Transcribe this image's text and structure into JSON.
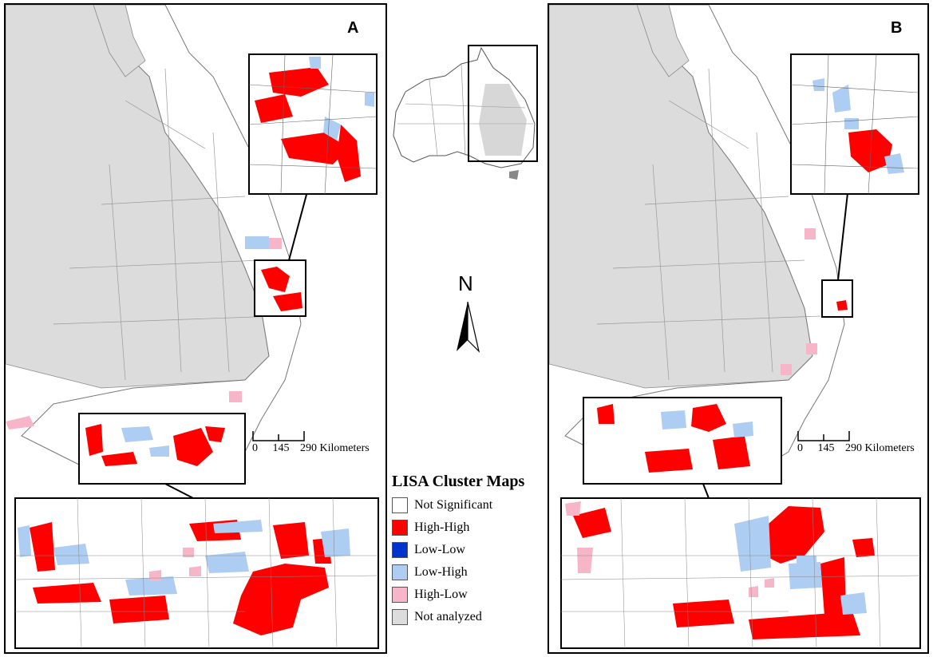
{
  "panels": {
    "a": {
      "letter": "A"
    },
    "b": {
      "letter": "B"
    }
  },
  "north_arrow": {
    "letter": "N"
  },
  "scale": {
    "ticks": [
      "0",
      "145",
      "290"
    ],
    "unit": "Kilometers"
  },
  "legend": {
    "title": "LISA Cluster Maps",
    "items": [
      {
        "label": "Not Significant",
        "color": "#ffffff"
      },
      {
        "label": "High-High",
        "color": "#ff0000"
      },
      {
        "label": "Low-Low",
        "color": "#0033cc"
      },
      {
        "label": "Low-High",
        "color": "#aecdf2"
      },
      {
        "label": "High-Low",
        "color": "#f7b6c8"
      },
      {
        "label": "Not analyzed",
        "color": "#dcdcdc"
      }
    ]
  },
  "colors": {
    "not_analyzed": "#dcdcdc",
    "not_significant": "#ffffff",
    "high_high": "#ff0000",
    "low_high": "#aecdf2",
    "high_low": "#f7b6c8",
    "boundary": "#555555"
  }
}
